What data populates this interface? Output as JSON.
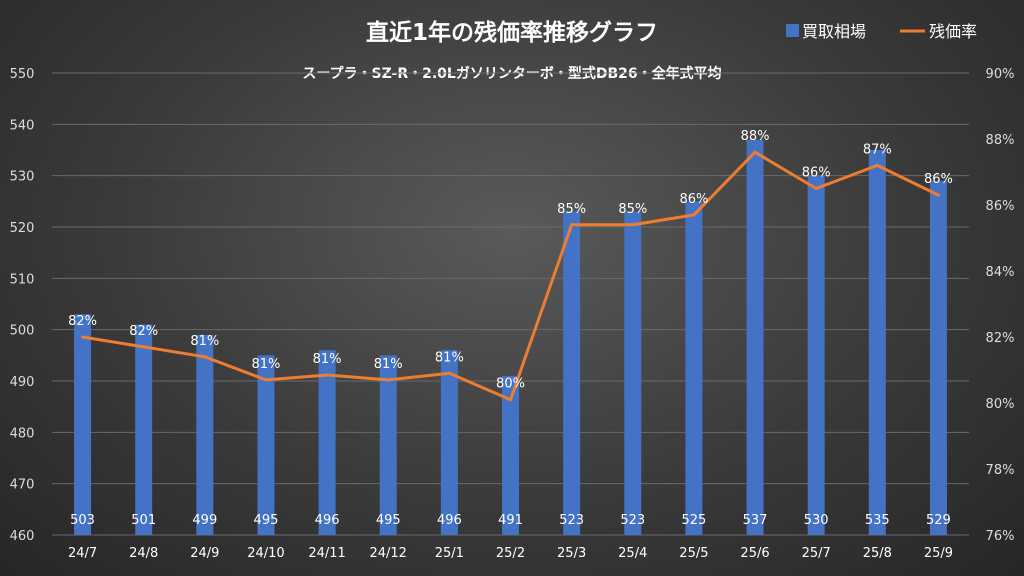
{
  "chart_data": {
    "type": "bar+line",
    "title": "直近1年の残価率推移グラフ",
    "subtitle": "スープラ・SZ-R・2.0Lガソリンターボ・型式DB26・全年式平均",
    "legend": {
      "placement": "top-right",
      "entries": [
        "買取相場",
        "残価率"
      ]
    },
    "categories": [
      "24/7",
      "24/8",
      "24/9",
      "24/10",
      "24/11",
      "24/12",
      "25/1",
      "25/2",
      "25/3",
      "25/4",
      "25/5",
      "25/6",
      "25/7",
      "25/8",
      "25/9"
    ],
    "series": [
      {
        "name": "買取相場",
        "type": "bar",
        "axis": "left",
        "color": "#4472C4",
        "values": [
          503,
          501,
          499,
          495,
          496,
          495,
          496,
          491,
          523,
          523,
          525,
          537,
          530,
          535,
          529
        ],
        "labels": [
          "503",
          "501",
          "499",
          "495",
          "496",
          "495",
          "496",
          "491",
          "523",
          "523",
          "525",
          "537",
          "530",
          "535",
          "529"
        ]
      },
      {
        "name": "残価率",
        "type": "line",
        "axis": "right",
        "color": "#ED7D31",
        "values": [
          82.0,
          81.7,
          81.4,
          80.7,
          80.85,
          80.7,
          80.9,
          80.1,
          85.4,
          85.4,
          85.7,
          87.6,
          86.5,
          87.2,
          86.3
        ],
        "labels": [
          "82%",
          "82%",
          "81%",
          "81%",
          "81%",
          "81%",
          "81%",
          "80%",
          "85%",
          "85%",
          "86%",
          "88%",
          "86%",
          "87%",
          "86%"
        ]
      }
    ],
    "y_left": {
      "range": [
        460,
        550
      ],
      "ticks": [
        "460",
        "470",
        "480",
        "490",
        "500",
        "510",
        "520",
        "530",
        "540",
        "550"
      ]
    },
    "y_right": {
      "range": [
        76,
        90
      ],
      "ticks": [
        "76%",
        "78%",
        "80%",
        "82%",
        "84%",
        "86%",
        "88%",
        "90%"
      ]
    },
    "grid": true
  }
}
